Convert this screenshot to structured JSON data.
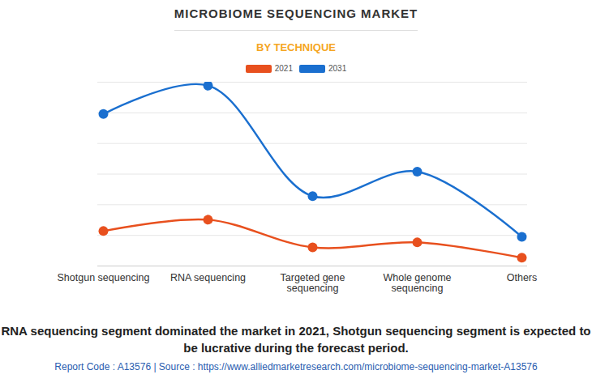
{
  "chart_data": {
    "type": "line",
    "title": "MICROBIOME SEQUENCING MARKET",
    "subtitle": "BY TECHNIQUE",
    "caption": "RNA sequencing segment dominated the market in 2021, Shotgun sequencing segment is expected to be lucrative during the forecast period.",
    "footer": "Report Code : A13576  |  Source : https://www.alliedmarketresearch.com/microbiome-sequencing-market-A13576",
    "categories": [
      "Shotgun sequencing",
      "RNA sequencing",
      "Targeted gene\nsequencing",
      "Whole genome\nsequencing",
      "Others"
    ],
    "series": [
      {
        "name": "2021",
        "color": "#e8501e",
        "values": [
          1.14,
          1.51,
          0.61,
          0.77,
          0.27
        ]
      },
      {
        "name": "2031",
        "color": "#1a6fcf",
        "values": [
          4.96,
          5.89,
          2.28,
          3.08,
          0.95
        ]
      }
    ],
    "ylim": [
      0,
      6
    ],
    "yticks": [
      0,
      1,
      2,
      3,
      4,
      5,
      6
    ],
    "grid": true,
    "tick_labels": "x",
    "legend": "top",
    "marker": "circle",
    "line_style": "smooth"
  }
}
